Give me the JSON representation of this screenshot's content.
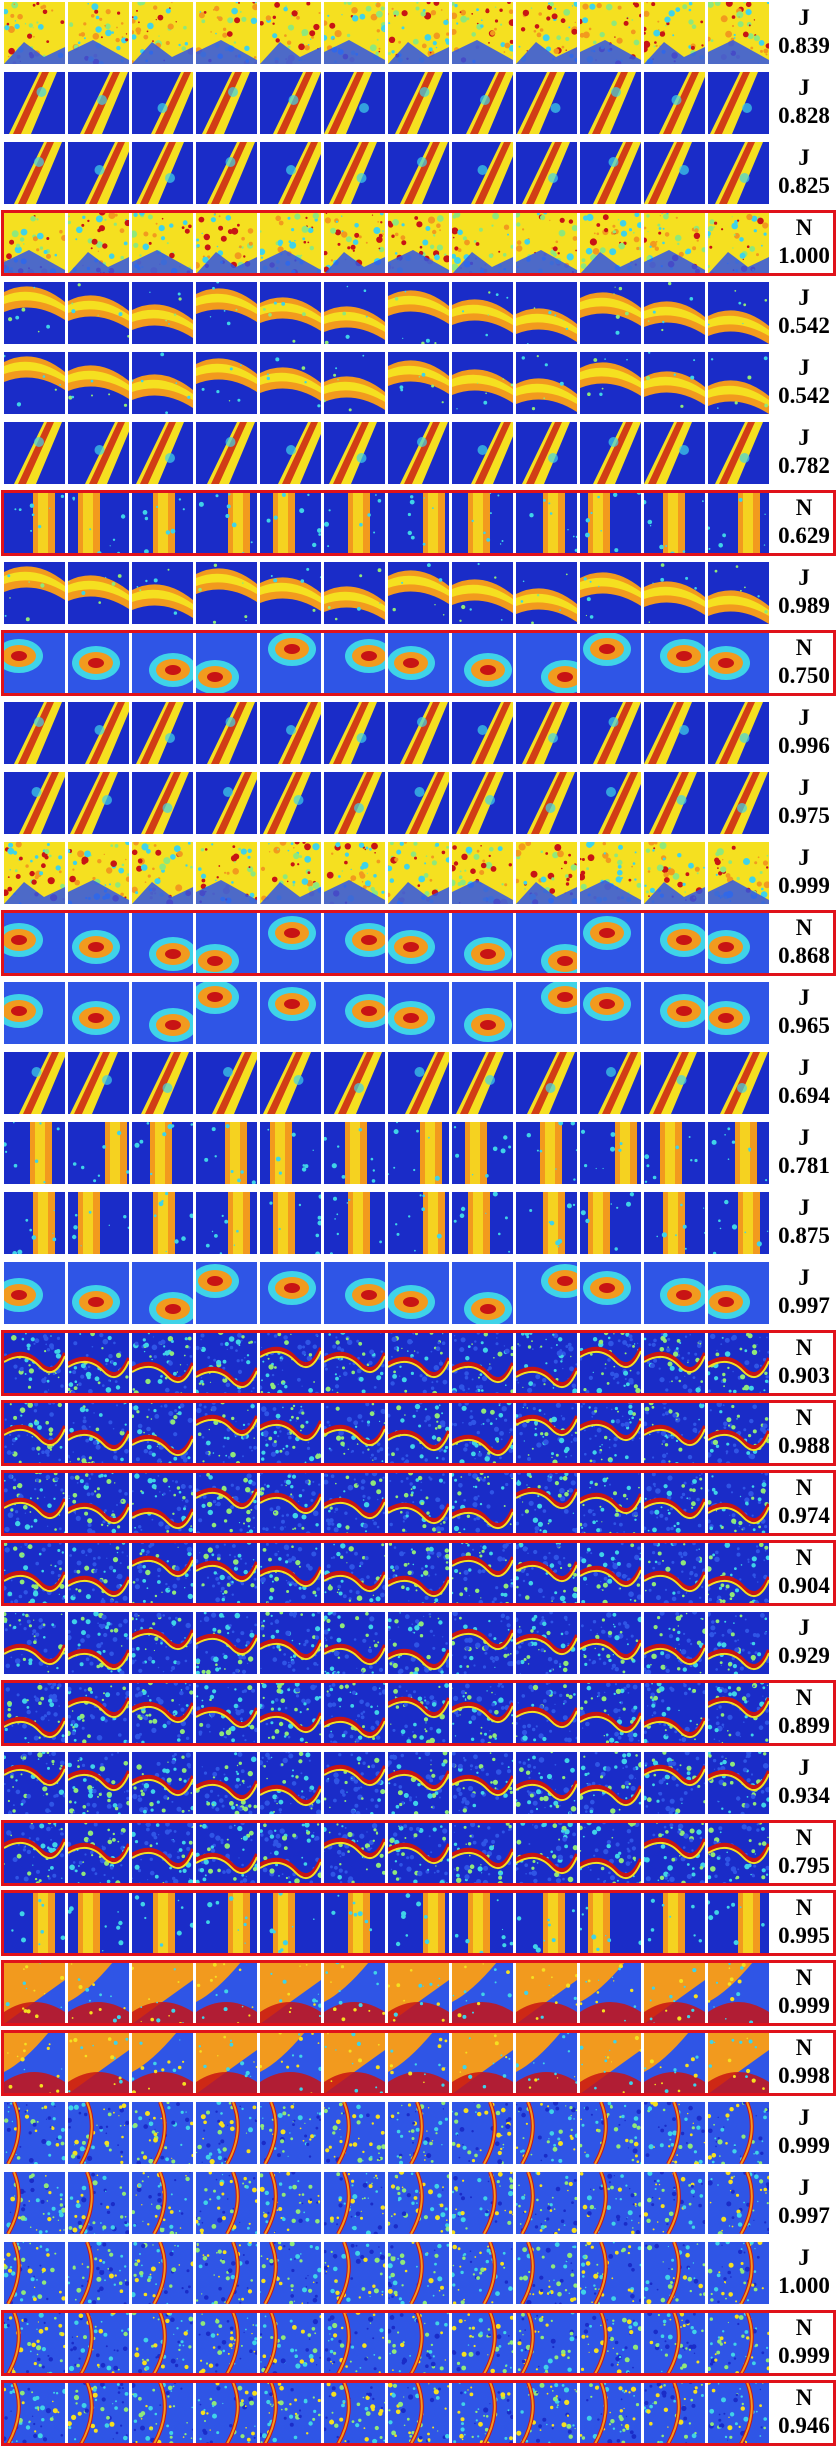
{
  "rows": [
    {
      "label": "J",
      "score": "0.839",
      "highlighted": false,
      "style": "speckle"
    },
    {
      "label": "J",
      "score": "0.828",
      "highlighted": false,
      "style": "wedge"
    },
    {
      "label": "J",
      "score": "0.825",
      "highlighted": false,
      "style": "wedge"
    },
    {
      "label": "N",
      "score": "1.000",
      "highlighted": true,
      "style": "speckle"
    },
    {
      "label": "J",
      "score": "0.542",
      "highlighted": false,
      "style": "band"
    },
    {
      "label": "J",
      "score": "0.542",
      "highlighted": false,
      "style": "band"
    },
    {
      "label": "J",
      "score": "0.782",
      "highlighted": false,
      "style": "wedge"
    },
    {
      "label": "N",
      "score": "0.629",
      "highlighted": true,
      "style": "stripe"
    },
    {
      "label": "J",
      "score": "0.989",
      "highlighted": false,
      "style": "band"
    },
    {
      "label": "N",
      "score": "0.750",
      "highlighted": true,
      "style": "blob"
    },
    {
      "label": "J",
      "score": "0.996",
      "highlighted": false,
      "style": "wedge"
    },
    {
      "label": "J",
      "score": "0.975",
      "highlighted": false,
      "style": "wedge"
    },
    {
      "label": "J",
      "score": "0.999",
      "highlighted": false,
      "style": "speckle"
    },
    {
      "label": "N",
      "score": "0.868",
      "highlighted": true,
      "style": "blob"
    },
    {
      "label": "J",
      "score": "0.965",
      "highlighted": false,
      "style": "blob"
    },
    {
      "label": "J",
      "score": "0.694",
      "highlighted": false,
      "style": "wedge"
    },
    {
      "label": "J",
      "score": "0.781",
      "highlighted": false,
      "style": "stripe"
    },
    {
      "label": "J",
      "score": "0.875",
      "highlighted": false,
      "style": "stripe"
    },
    {
      "label": "J",
      "score": "0.997",
      "highlighted": false,
      "style": "blob"
    },
    {
      "label": "N",
      "score": "0.903",
      "highlighted": true,
      "style": "noise"
    },
    {
      "label": "N",
      "score": "0.988",
      "highlighted": true,
      "style": "noise"
    },
    {
      "label": "N",
      "score": "0.974",
      "highlighted": true,
      "style": "noise"
    },
    {
      "label": "N",
      "score": "0.904",
      "highlighted": true,
      "style": "noise"
    },
    {
      "label": "J",
      "score": "0.929",
      "highlighted": false,
      "style": "noise"
    },
    {
      "label": "N",
      "score": "0.899",
      "highlighted": true,
      "style": "noise"
    },
    {
      "label": "J",
      "score": "0.934",
      "highlighted": false,
      "style": "noise"
    },
    {
      "label": "N",
      "score": "0.795",
      "highlighted": true,
      "style": "noise"
    },
    {
      "label": "N",
      "score": "0.995",
      "highlighted": true,
      "style": "stripe"
    },
    {
      "label": "N",
      "score": "0.999",
      "highlighted": true,
      "style": "warm"
    },
    {
      "label": "N",
      "score": "0.998",
      "highlighted": true,
      "style": "warm"
    },
    {
      "label": "J",
      "score": "0.999",
      "highlighted": false,
      "style": "veins"
    },
    {
      "label": "J",
      "score": "0.997",
      "highlighted": false,
      "style": "veins"
    },
    {
      "label": "J",
      "score": "1.000",
      "highlighted": false,
      "style": "veins"
    },
    {
      "label": "N",
      "score": "0.999",
      "highlighted": true,
      "style": "veins"
    },
    {
      "label": "N",
      "score": "0.946",
      "highlighted": true,
      "style": "veins"
    }
  ],
  "colors": {
    "deep_blue": "#1a2cc8",
    "blue": "#2f55e6",
    "cyan": "#3fd3e8",
    "green": "#8fe87a",
    "yellow": "#f5e020",
    "orange": "#f29a1e",
    "red": "#c81414",
    "frame_red": "#e0121a"
  }
}
